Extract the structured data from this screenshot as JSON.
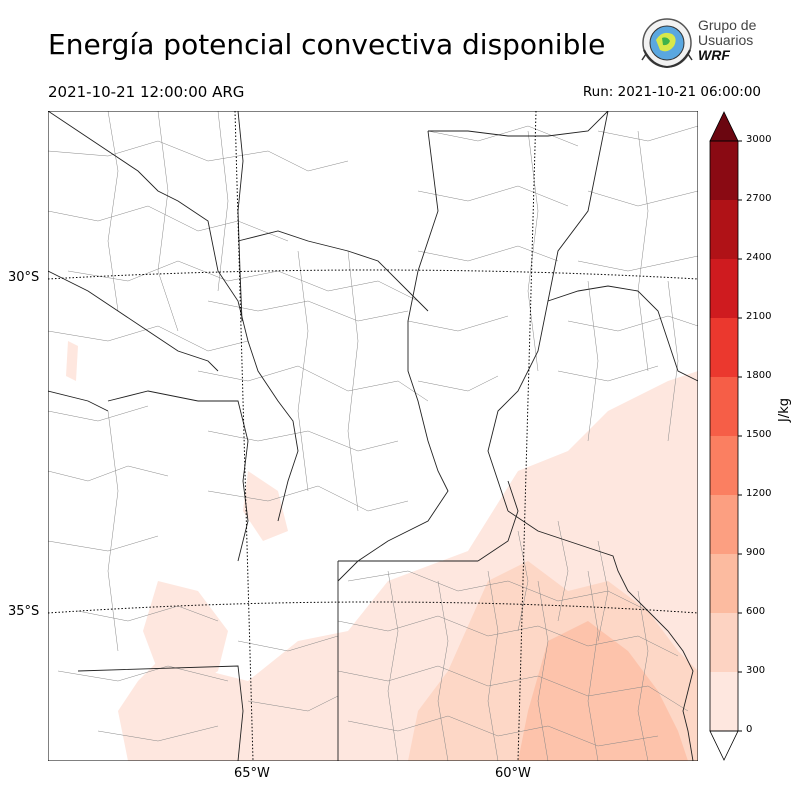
{
  "title": "Energía potencial convectiva disponible",
  "valid_time": "2021-10-21 12:00:00 ARG",
  "run_time": "Run: 2021-10-21 06:00:00",
  "logo": {
    "line1": "Grupo de",
    "line2": "Usuarios",
    "line3": "WRF"
  },
  "lat_labels": [
    "30°S",
    "35°S"
  ],
  "lon_labels": [
    "65°W",
    "60°W"
  ],
  "colorbar": {
    "unit": "J/kg",
    "ticks": [
      "0",
      "300",
      "600",
      "900",
      "1200",
      "1500",
      "1800",
      "2100",
      "2400",
      "2700",
      "3000"
    ],
    "colors": [
      "#fee7df",
      "#fdd3c2",
      "#fcbba0",
      "#fc9f81",
      "#fb7f61",
      "#f65e47",
      "#eb382e",
      "#cf1b1f",
      "#b01217",
      "#8a0a13"
    ],
    "over_color": "#6b0610",
    "under_color": "#ffffff"
  }
}
